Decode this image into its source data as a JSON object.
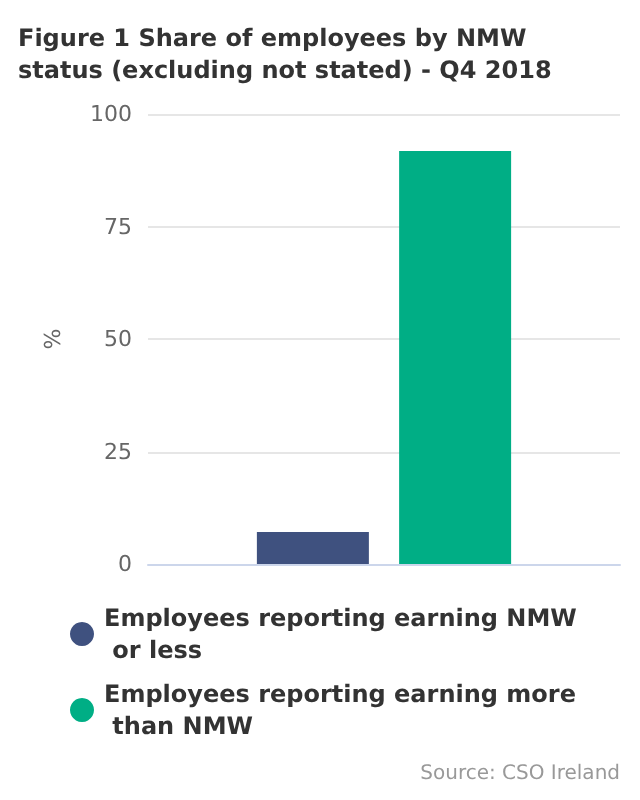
{
  "chart_data": {
    "type": "bar",
    "title": "Figure 1 Share of employees by NMW status (excluding not stated) - Q4 2018",
    "ylabel": "%",
    "categories": [
      null
    ],
    "series": [
      {
        "name": "Employees reporting earning NMW or less",
        "color": "#3f517f",
        "values": [
          7.1
        ]
      },
      {
        "name": "Employees reporting earning more than NMW",
        "color": "#00ae85",
        "values": [
          91.8
        ]
      }
    ],
    "ylim": [
      0,
      100
    ],
    "yticks": [
      0,
      25,
      50,
      75,
      100
    ],
    "grid": "y",
    "legend": "bottom",
    "annotations": [
      "Source: CSO Ireland"
    ]
  }
}
